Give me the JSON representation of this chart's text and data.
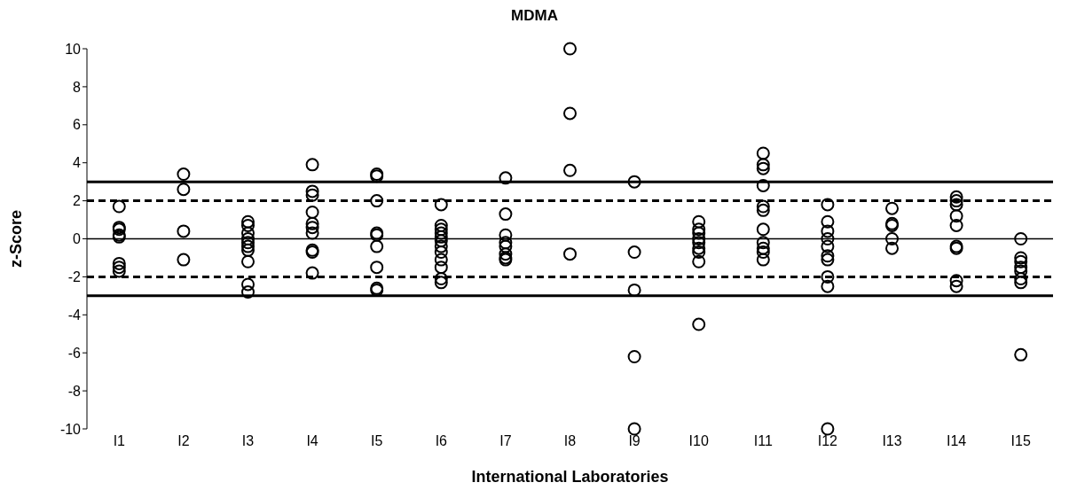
{
  "chart_data": {
    "type": "scatter",
    "title": "MDMA",
    "xlabel": "International Laboratories",
    "ylabel": "z-Score",
    "categories": [
      "I1",
      "I2",
      "I3",
      "I4",
      "I5",
      "I6",
      "I7",
      "I8",
      "I9",
      "I10",
      "I11",
      "I12",
      "I13",
      "I14",
      "I15"
    ],
    "series": [
      {
        "color": "#000000",
        "x": [
          "I1",
          "I1",
          "I1",
          "I1",
          "I1",
          "I1",
          "I1",
          "I1",
          "I2",
          "I2",
          "I2",
          "I2",
          "I3",
          "I3",
          "I3",
          "I3",
          "I3",
          "I3",
          "I3",
          "I3",
          "I3",
          "I3",
          "I4",
          "I4",
          "I4",
          "I4",
          "I4",
          "I4",
          "I4",
          "I4",
          "I4",
          "I4",
          "I5",
          "I5",
          "I5",
          "I5",
          "I5",
          "I5",
          "I5",
          "I5",
          "I5",
          "I6",
          "I6",
          "I6",
          "I6",
          "I6",
          "I6",
          "I6",
          "I6",
          "I6",
          "I6",
          "I6",
          "I6",
          "I7",
          "I7",
          "I7",
          "I7",
          "I7",
          "I7",
          "I7",
          "I7",
          "I8",
          "I8",
          "I8",
          "I8",
          "I9",
          "I9",
          "I9",
          "I9",
          "I9",
          "I10",
          "I10",
          "I10",
          "I10",
          "I10",
          "I10",
          "I10",
          "I10",
          "I10",
          "I11",
          "I11",
          "I11",
          "I11",
          "I11",
          "I11",
          "I11",
          "I11",
          "I11",
          "I11",
          "I11",
          "I12",
          "I12",
          "I12",
          "I12",
          "I12",
          "I12",
          "I12",
          "I12",
          "I12",
          "I12",
          "I13",
          "I13",
          "I13",
          "I13",
          "I13",
          "I14",
          "I14",
          "I14",
          "I14",
          "I14",
          "I14",
          "I14",
          "I14",
          "I14",
          "I15",
          "I15",
          "I15",
          "I15",
          "I15",
          "I15",
          "I15",
          "I15"
        ],
        "values": [
          1.7,
          0.6,
          0.5,
          0.2,
          0.1,
          -1.3,
          -1.5,
          -1.7,
          3.4,
          2.6,
          0.4,
          -1.1,
          0.9,
          0.7,
          0.3,
          0,
          -0.2,
          -0.4,
          -0.6,
          -1.2,
          -2.4,
          -2.8,
          3.9,
          2.5,
          2.3,
          1.4,
          0.8,
          0.6,
          0.3,
          -0.6,
          -0.7,
          -1.8,
          3.4,
          3.3,
          2.0,
          0.3,
          0.2,
          -0.4,
          -1.5,
          -2.6,
          -2.7,
          1.8,
          0.7,
          0.5,
          0.3,
          0.1,
          -0.1,
          -0.4,
          -0.7,
          -1.1,
          -1.5,
          -2.1,
          -2.3,
          3.2,
          1.3,
          0.2,
          -0.2,
          -0.4,
          -0.8,
          -1.0,
          -1.1,
          10,
          6.6,
          3.6,
          -0.8,
          3.0,
          -0.7,
          -2.7,
          -6.2,
          -10,
          0.9,
          0.5,
          0.3,
          0,
          -0.2,
          -0.5,
          -0.7,
          -1.2,
          -4.5,
          4.5,
          3.9,
          3.7,
          2.8,
          1.7,
          1.5,
          0.5,
          -0.2,
          -0.5,
          -0.7,
          -1.1,
          1.8,
          0.9,
          0.4,
          0,
          -0.4,
          -0.9,
          -1.1,
          -2.0,
          -2.5,
          -10,
          1.6,
          0.8,
          0.7,
          0,
          -0.5,
          2.2,
          2.0,
          1.8,
          1.2,
          0.7,
          -0.4,
          -0.5,
          -2.2,
          -2.5,
          0,
          -1.0,
          -1.2,
          -1.5,
          -1.7,
          -2.1,
          -2.3,
          -6.1
        ]
      }
    ],
    "ylim": [
      -10,
      10
    ],
    "yticks": [
      -10,
      -8,
      -6,
      -4,
      -2,
      0,
      2,
      4,
      6,
      8,
      10
    ],
    "grid": false,
    "legend": false,
    "marker": "circle",
    "ref_lines": [
      {
        "axis": "y",
        "value": 3,
        "color": "#000000",
        "line_style": "solid"
      },
      {
        "axis": "y",
        "value": 2,
        "color": "#000000",
        "line_style": "dashed"
      },
      {
        "axis": "y",
        "value": 0,
        "color": "#000000",
        "line_style": "solid"
      },
      {
        "axis": "y",
        "value": -2,
        "color": "#000000",
        "line_style": "dashed"
      },
      {
        "axis": "y",
        "value": -3,
        "color": "#000000",
        "line_style": "solid"
      }
    ]
  }
}
